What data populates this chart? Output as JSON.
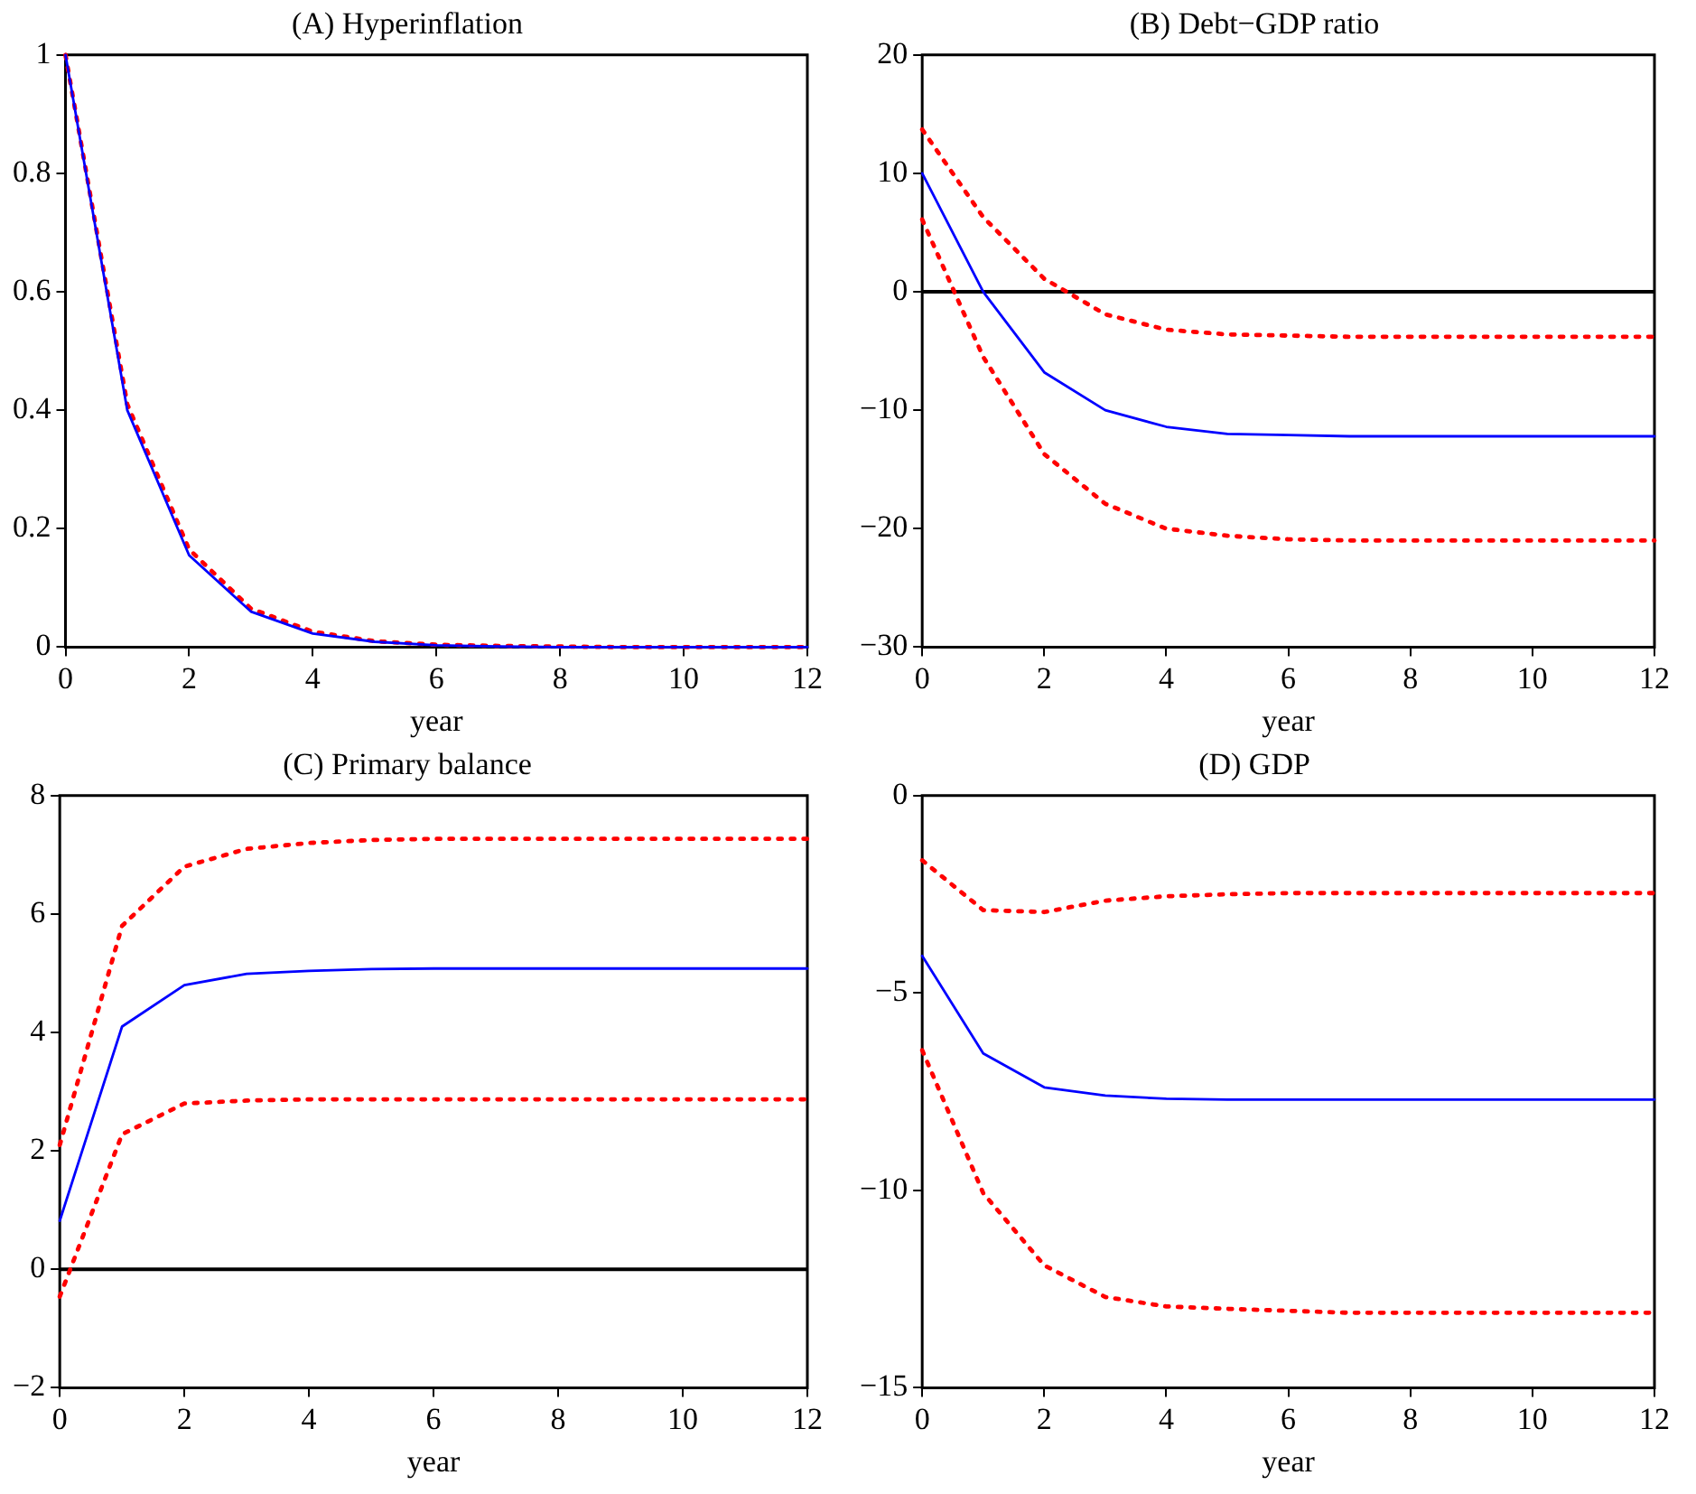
{
  "chart_data": [
    {
      "type": "line",
      "title": "(A) Hyperinflation",
      "xlabel": "year",
      "x": [
        0,
        1,
        2,
        3,
        4,
        5,
        6,
        7,
        8,
        9,
        10,
        11,
        12
      ],
      "xlim": [
        0,
        12
      ],
      "xticks": [
        0,
        2,
        4,
        6,
        8,
        10,
        12
      ],
      "ylim": [
        0,
        1
      ],
      "yticks": [
        0,
        0.2,
        0.4,
        0.6,
        0.8,
        1
      ],
      "grid": false,
      "legend": false,
      "marker": "none",
      "series": [
        {
          "color": "#0000ff",
          "line_style": "solid",
          "values": [
            1,
            0.4,
            0.155,
            0.06,
            0.023,
            0.009,
            0.003,
            0.001,
            0,
            0,
            0,
            0,
            0
          ]
        },
        {
          "color": "#ff0000",
          "line_style": "dotted",
          "values": [
            1,
            0.41,
            0.165,
            0.065,
            0.026,
            0.01,
            0.004,
            0.002,
            0.001,
            0,
            0,
            0,
            0
          ]
        }
      ]
    },
    {
      "type": "line",
      "title": "(B) Debt−GDP ratio",
      "xlabel": "year",
      "x": [
        0,
        1,
        2,
        3,
        4,
        5,
        6,
        7,
        8,
        9,
        10,
        11,
        12
      ],
      "xlim": [
        0,
        12
      ],
      "xticks": [
        0,
        2,
        4,
        6,
        8,
        10,
        12
      ],
      "ylim": [
        -30,
        20
      ],
      "yticks": [
        -30,
        -20,
        -10,
        0,
        10,
        20
      ],
      "grid": false,
      "legend": false,
      "marker": "none",
      "ref_lines": [
        {
          "axis": "y",
          "value": 0,
          "color": "#000000"
        }
      ],
      "series": [
        {
          "color": "#ff0000",
          "line_style": "dotted",
          "values": [
            13.7,
            6.3,
            1.1,
            -1.9,
            -3.2,
            -3.6,
            -3.7,
            -3.8,
            -3.8,
            -3.8,
            -3.8,
            -3.8,
            -3.8
          ]
        },
        {
          "color": "#ff0000",
          "line_style": "dotted",
          "values": [
            6.1,
            -5.5,
            -13.7,
            -17.9,
            -20,
            -20.6,
            -20.9,
            -21,
            -21,
            -21,
            -21,
            -21,
            -21
          ]
        },
        {
          "color": "#0000ff",
          "line_style": "solid",
          "values": [
            10,
            0,
            -6.8,
            -10,
            -11.4,
            -12,
            -12.1,
            -12.2,
            -12.2,
            -12.2,
            -12.2,
            -12.2,
            -12.2
          ]
        }
      ]
    },
    {
      "type": "line",
      "title": "(C) Primary balance",
      "xlabel": "year",
      "x": [
        0,
        1,
        2,
        3,
        4,
        5,
        6,
        7,
        8,
        9,
        10,
        11,
        12
      ],
      "xlim": [
        0,
        12
      ],
      "xticks": [
        0,
        2,
        4,
        6,
        8,
        10,
        12
      ],
      "ylim": [
        -2,
        8
      ],
      "yticks": [
        -2,
        0,
        2,
        4,
        6,
        8
      ],
      "grid": false,
      "legend": false,
      "marker": "none",
      "ref_lines": [
        {
          "axis": "y",
          "value": 0,
          "color": "#000000"
        }
      ],
      "series": [
        {
          "color": "#ff0000",
          "line_style": "dotted",
          "values": [
            2.1,
            5.8,
            6.8,
            7.1,
            7.2,
            7.25,
            7.27,
            7.27,
            7.27,
            7.27,
            7.27,
            7.27,
            7.27
          ]
        },
        {
          "color": "#ff0000",
          "line_style": "dotted",
          "values": [
            -0.46,
            2.28,
            2.8,
            2.85,
            2.87,
            2.87,
            2.87,
            2.87,
            2.87,
            2.87,
            2.87,
            2.87,
            2.87
          ]
        },
        {
          "color": "#0000ff",
          "line_style": "solid",
          "values": [
            0.82,
            4.1,
            4.8,
            4.99,
            5.04,
            5.07,
            5.08,
            5.08,
            5.08,
            5.08,
            5.08,
            5.08,
            5.08
          ]
        }
      ]
    },
    {
      "type": "line",
      "title": "(D) GDP",
      "xlabel": "year",
      "x": [
        0,
        1,
        2,
        3,
        4,
        5,
        6,
        7,
        8,
        9,
        10,
        11,
        12
      ],
      "xlim": [
        0,
        12
      ],
      "xticks": [
        0,
        2,
        4,
        6,
        8,
        10,
        12
      ],
      "ylim": [
        -15,
        0
      ],
      "yticks": [
        -15,
        -10,
        -5,
        0
      ],
      "grid": false,
      "legend": false,
      "marker": "none",
      "series": [
        {
          "color": "#ff0000",
          "line_style": "dotted",
          "values": [
            -1.64,
            -2.9,
            -2.95,
            -2.66,
            -2.55,
            -2.5,
            -2.47,
            -2.47,
            -2.47,
            -2.47,
            -2.47,
            -2.47,
            -2.47
          ]
        },
        {
          "color": "#ff0000",
          "line_style": "dotted",
          "values": [
            -6.45,
            -10.07,
            -11.9,
            -12.7,
            -12.94,
            -13,
            -13.05,
            -13.1,
            -13.1,
            -13.1,
            -13.1,
            -13.1,
            -13.1
          ]
        },
        {
          "color": "#0000ff",
          "line_style": "solid",
          "values": [
            -4.06,
            -6.53,
            -7.39,
            -7.6,
            -7.68,
            -7.7,
            -7.7,
            -7.7,
            -7.7,
            -7.7,
            -7.7,
            -7.7,
            -7.7
          ]
        }
      ]
    }
  ]
}
